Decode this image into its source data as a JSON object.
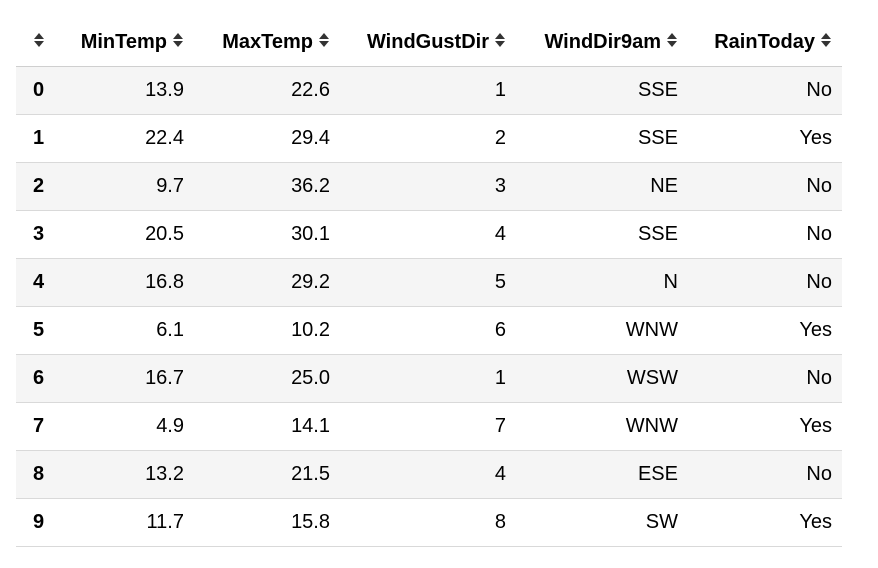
{
  "table": {
    "columns": [
      "",
      "MinTemp",
      "MaxTemp",
      "WindGustDir",
      "WindDir9am",
      "RainToday"
    ],
    "rows": [
      {
        "index": "0",
        "cells": [
          "13.9",
          "22.6",
          "1",
          "SSE",
          "No"
        ]
      },
      {
        "index": "1",
        "cells": [
          "22.4",
          "29.4",
          "2",
          "SSE",
          "Yes"
        ]
      },
      {
        "index": "2",
        "cells": [
          "9.7",
          "36.2",
          "3",
          "NE",
          "No"
        ]
      },
      {
        "index": "3",
        "cells": [
          "20.5",
          "30.1",
          "4",
          "SSE",
          "No"
        ]
      },
      {
        "index": "4",
        "cells": [
          "16.8",
          "29.2",
          "5",
          "N",
          "No"
        ]
      },
      {
        "index": "5",
        "cells": [
          "6.1",
          "10.2",
          "6",
          "WNW",
          "Yes"
        ]
      },
      {
        "index": "6",
        "cells": [
          "16.7",
          "25.0",
          "1",
          "WSW",
          "No"
        ]
      },
      {
        "index": "7",
        "cells": [
          "4.9",
          "14.1",
          "7",
          "WNW",
          "Yes"
        ]
      },
      {
        "index": "8",
        "cells": [
          "13.2",
          "21.5",
          "4",
          "ESE",
          "No"
        ]
      },
      {
        "index": "9",
        "cells": [
          "11.7",
          "15.8",
          "8",
          "SW",
          "Yes"
        ]
      }
    ],
    "sort_icon": "sort-up-down-icon",
    "colors": {
      "stripe": "#f5f5f5",
      "border": "#d9d9d9",
      "icon": "#333333"
    }
  }
}
